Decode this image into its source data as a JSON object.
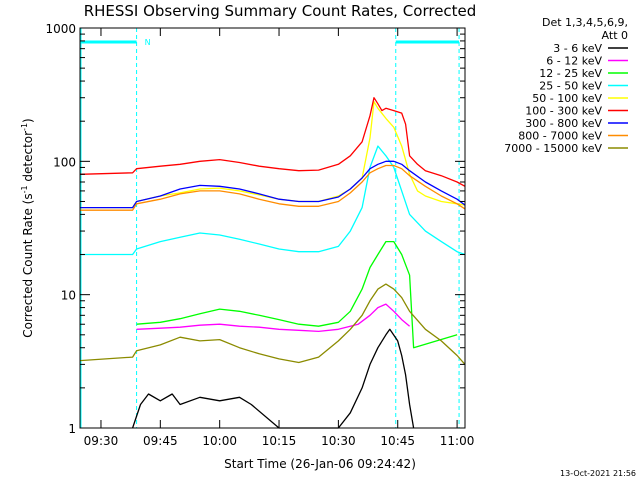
{
  "chart_data": {
    "type": "line",
    "title": "RHESSI Observing Summary Count Rates, Corrected",
    "xlabel": "Start Time (26-Jan-06 09:24:42)",
    "ylabel_main": "Corrected Count Rate (s",
    "ylabel_sup1": "-1",
    "ylabel_mid": " detector",
    "ylabel_sup2": "-1",
    "ylabel_end": ")",
    "yscale": "log",
    "ylim": [
      1,
      1000
    ],
    "xlim": [
      "09:24:42",
      "11:02:00"
    ],
    "x_ticks": [
      "09:30",
      "09:45",
      "10:00",
      "10:15",
      "10:30",
      "10:45",
      "11:00"
    ],
    "y_ticks": [
      "1",
      "10",
      "100",
      "1000"
    ],
    "grid": false,
    "legend_placement": "right",
    "legend_header": [
      "Det 1,3,4,5,6,9,",
      "Att 0"
    ],
    "annotations": {
      "n_marker": "N",
      "generated": "13-Oct-2021 21:56"
    },
    "shaded_intervals": [
      [
        "09:24:42",
        "09:39:00"
      ],
      [
        "10:44:30",
        "11:00:30"
      ]
    ],
    "series": [
      {
        "name": "3 - 6 keV",
        "color": "#000000",
        "x": [
          "09:38",
          "09:40",
          "09:42",
          "09:45",
          "09:48",
          "09:50",
          "09:55",
          "10:00",
          "10:05",
          "10:08",
          "10:15",
          "10:25",
          "10:30",
          "10:33",
          "10:36",
          "10:38",
          "10:40",
          "10:42",
          "10:43",
          "10:45",
          "10:46",
          "10:47",
          "10:48",
          "10:49"
        ],
        "values": [
          1.0,
          1.5,
          1.8,
          1.6,
          1.8,
          1.5,
          1.7,
          1.6,
          1.7,
          1.5,
          1.0,
          1.0,
          1.0,
          1.3,
          2.0,
          3.0,
          4.0,
          5.0,
          5.5,
          4.5,
          3.5,
          2.5,
          1.5,
          1.0
        ]
      },
      {
        "name": "6 - 12 keV",
        "color": "#ff00ff",
        "x": [
          "09:39",
          "09:45",
          "09:50",
          "09:55",
          "10:00",
          "10:05",
          "10:10",
          "10:15",
          "10:20",
          "10:25",
          "10:30",
          "10:35",
          "10:38",
          "10:40",
          "10:42",
          "10:44",
          "10:46",
          "10:48"
        ],
        "values": [
          5.5,
          5.6,
          5.7,
          5.9,
          6.0,
          5.8,
          5.7,
          5.5,
          5.4,
          5.3,
          5.5,
          6.0,
          7.0,
          8.0,
          8.5,
          7.5,
          6.5,
          5.8
        ]
      },
      {
        "name": "12 - 25 keV",
        "color": "#00ff00",
        "x": [
          "09:39",
          "09:45",
          "09:50",
          "09:55",
          "10:00",
          "10:05",
          "10:10",
          "10:15",
          "10:20",
          "10:25",
          "10:30",
          "10:33",
          "10:36",
          "10:38",
          "10:40",
          "10:42",
          "10:44",
          "10:46",
          "10:48",
          "10:49",
          "11:00"
        ],
        "values": [
          6.0,
          6.2,
          6.6,
          7.2,
          7.8,
          7.5,
          7.0,
          6.5,
          6.0,
          5.8,
          6.2,
          7.5,
          11,
          16,
          20,
          25,
          25,
          20,
          14,
          4.0,
          5.0
        ]
      },
      {
        "name": "25 - 50 keV",
        "color": "#00ffff",
        "x": [
          "09:24:42",
          "09:38",
          "09:39",
          "09:45",
          "09:50",
          "09:55",
          "10:00",
          "10:05",
          "10:10",
          "10:15",
          "10:20",
          "10:25",
          "10:30",
          "10:33",
          "10:36",
          "10:38",
          "10:40",
          "10:42",
          "10:44",
          "10:46",
          "10:48",
          "10:52",
          "10:56",
          "11:00",
          "11:02"
        ],
        "values": [
          20,
          20,
          22,
          25,
          27,
          29,
          28,
          26,
          24,
          22,
          21,
          21,
          23,
          30,
          45,
          90,
          130,
          110,
          90,
          60,
          40,
          30,
          25,
          21,
          20
        ]
      },
      {
        "name": "50 - 100 keV",
        "color": "#ffff00",
        "x": [
          "09:24:42",
          "09:38",
          "09:39",
          "09:45",
          "09:50",
          "09:55",
          "10:00",
          "10:05",
          "10:10",
          "10:15",
          "10:20",
          "10:25",
          "10:30",
          "10:33",
          "10:36",
          "10:38",
          "10:39",
          "10:40",
          "10:42",
          "10:44",
          "10:46",
          "10:48",
          "10:50",
          "10:52",
          "10:56",
          "11:00",
          "11:02"
        ],
        "values": [
          45,
          45,
          50,
          55,
          58,
          62,
          63,
          60,
          56,
          52,
          50,
          50,
          55,
          62,
          75,
          150,
          280,
          250,
          210,
          180,
          130,
          80,
          60,
          55,
          50,
          48,
          47
        ]
      },
      {
        "name": "100 - 300 keV",
        "color": "#ff0000",
        "x": [
          "09:24:42",
          "09:38",
          "09:39",
          "09:45",
          "09:50",
          "09:55",
          "10:00",
          "10:05",
          "10:10",
          "10:15",
          "10:20",
          "10:25",
          "10:30",
          "10:33",
          "10:36",
          "10:38",
          "10:39",
          "10:40",
          "10:41",
          "10:42",
          "10:44",
          "10:46",
          "10:47",
          "10:48",
          "10:50",
          "10:52",
          "10:56",
          "11:00",
          "11:02"
        ],
        "values": [
          80,
          82,
          88,
          92,
          95,
          100,
          103,
          98,
          92,
          88,
          85,
          86,
          95,
          110,
          140,
          220,
          300,
          270,
          240,
          250,
          240,
          230,
          190,
          110,
          95,
          85,
          78,
          70,
          65
        ]
      },
      {
        "name": "300 - 800 keV",
        "color": "#0000ff",
        "x": [
          "09:24:42",
          "09:38",
          "09:39",
          "09:45",
          "09:50",
          "09:55",
          "10:00",
          "10:05",
          "10:10",
          "10:15",
          "10:20",
          "10:25",
          "10:30",
          "10:33",
          "10:36",
          "10:38",
          "10:40",
          "10:42",
          "10:44",
          "10:46",
          "10:48",
          "10:52",
          "10:56",
          "11:00",
          "11:02"
        ],
        "values": [
          45,
          45,
          50,
          55,
          62,
          66,
          65,
          62,
          57,
          52,
          50,
          50,
          54,
          62,
          75,
          88,
          95,
          100,
          100,
          95,
          85,
          70,
          60,
          52,
          47
        ]
      },
      {
        "name": "800 - 7000 keV",
        "color": "#ff8c00",
        "x": [
          "09:24:42",
          "09:38",
          "09:39",
          "09:45",
          "09:50",
          "09:55",
          "10:00",
          "10:05",
          "10:10",
          "10:15",
          "10:20",
          "10:25",
          "10:30",
          "10:33",
          "10:36",
          "10:38",
          "10:40",
          "10:42",
          "10:44",
          "10:46",
          "10:48",
          "10:52",
          "10:56",
          "11:00",
          "11:02"
        ],
        "values": [
          43,
          43,
          48,
          52,
          57,
          60,
          60,
          57,
          52,
          48,
          46,
          46,
          50,
          58,
          70,
          82,
          88,
          93,
          93,
          88,
          78,
          65,
          55,
          48,
          44
        ]
      },
      {
        "name": "7000 - 15000 keV",
        "color": "#8b8b00",
        "x": [
          "09:24:42",
          "09:38",
          "09:39",
          "09:45",
          "09:50",
          "09:55",
          "10:00",
          "10:05",
          "10:10",
          "10:15",
          "10:20",
          "10:25",
          "10:30",
          "10:33",
          "10:36",
          "10:38",
          "10:40",
          "10:42",
          "10:44",
          "10:46",
          "10:48",
          "10:52",
          "10:56",
          "11:00",
          "11:02"
        ],
        "values": [
          3.2,
          3.4,
          3.8,
          4.2,
          4.8,
          4.5,
          4.6,
          4.0,
          3.6,
          3.3,
          3.1,
          3.4,
          4.5,
          5.5,
          7.0,
          9.0,
          11,
          12,
          11,
          9.5,
          7.5,
          5.5,
          4.5,
          3.5,
          3.0
        ]
      }
    ]
  }
}
